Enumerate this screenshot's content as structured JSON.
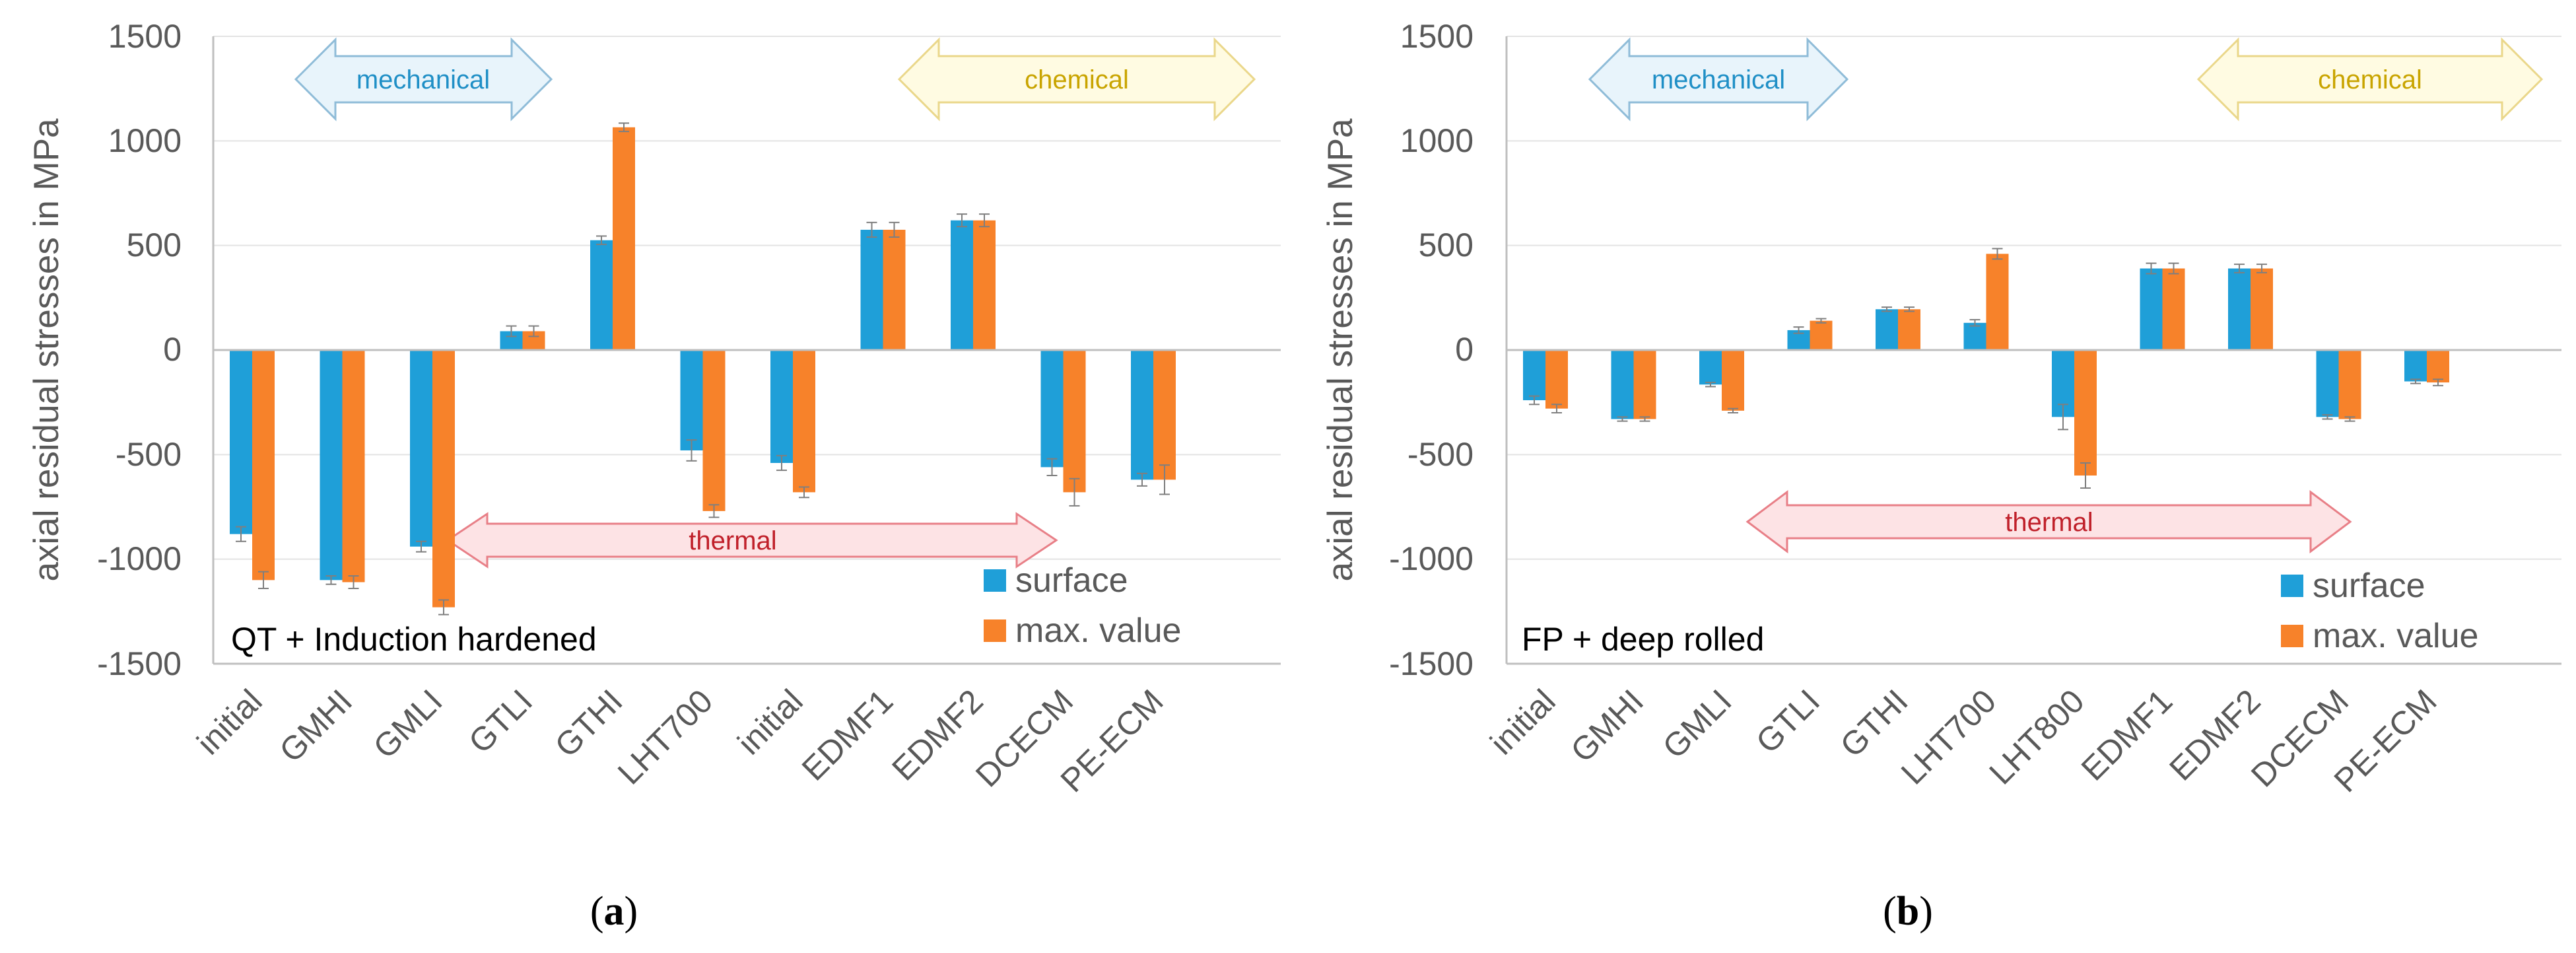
{
  "colors": {
    "surface": "#1f9fd8",
    "max": "#f7822a",
    "grid": "#e3e3e3",
    "axis": "#bfbfbf"
  },
  "chart_data": [
    {
      "type": "bar",
      "title": "QT + Induction hardened",
      "ylabel": "axial residual stresses in MPa",
      "ylim": [
        -1500,
        1500
      ],
      "yticks": [
        "1500",
        "1000",
        "500",
        "0",
        "-500",
        "-1000",
        "-1500"
      ],
      "categories": [
        "initial",
        "GMHI",
        "GMLI",
        "GTLI",
        "GTHI",
        "LHT700",
        "initial",
        "EDMF1",
        "EDMF2",
        "DCECM",
        "PE-ECM"
      ],
      "series": [
        {
          "name": "surface",
          "values": [
            -880,
            -1100,
            -940,
            90,
            525,
            -480,
            -540,
            575,
            620,
            -560,
            -620
          ],
          "errors": [
            35,
            20,
            25,
            25,
            20,
            50,
            35,
            35,
            30,
            40,
            30
          ]
        },
        {
          "name": "max. value",
          "values": [
            -1100,
            -1110,
            -1230,
            90,
            1065,
            -770,
            -680,
            575,
            620,
            -680,
            -620
          ],
          "errors": [
            40,
            30,
            35,
            25,
            20,
            30,
            25,
            35,
            30,
            65,
            70
          ]
        }
      ],
      "legend": [
        "surface",
        "max. value"
      ],
      "annotations": [
        "mechanical",
        "chemical",
        "thermal"
      ],
      "caption": {
        "open": "(",
        "letter": "a",
        "close": ")"
      }
    },
    {
      "type": "bar",
      "title": "FP + deep rolled",
      "ylabel": "axial residual stresses in MPa",
      "ylim": [
        -1500,
        1500
      ],
      "yticks": [
        "1500",
        "1000",
        "500",
        "0",
        "-500",
        "-1000",
        "-1500"
      ],
      "categories": [
        "initial",
        "GMHI",
        "GMLI",
        "GTLI",
        "GTHI",
        "LHT700",
        "LHT800",
        "EDMF1",
        "EDMF2",
        "DCECM",
        "PE-ECM"
      ],
      "series": [
        {
          "name": "surface",
          "values": [
            -240,
            -330,
            -165,
            95,
            195,
            130,
            -320,
            390,
            390,
            -320,
            -150
          ],
          "errors": [
            20,
            10,
            10,
            15,
            10,
            15,
            60,
            25,
            20,
            10,
            10
          ]
        },
        {
          "name": "max. value",
          "values": [
            -280,
            -330,
            -290,
            140,
            195,
            460,
            -600,
            390,
            390,
            -330,
            -155
          ],
          "errors": [
            20,
            10,
            10,
            10,
            10,
            25,
            60,
            25,
            20,
            10,
            15
          ]
        }
      ],
      "legend": [
        "surface",
        "max. value"
      ],
      "annotations": [
        "mechanical",
        "chemical",
        "thermal"
      ],
      "caption": {
        "open": "(",
        "letter": "b",
        "close": ")"
      }
    }
  ]
}
